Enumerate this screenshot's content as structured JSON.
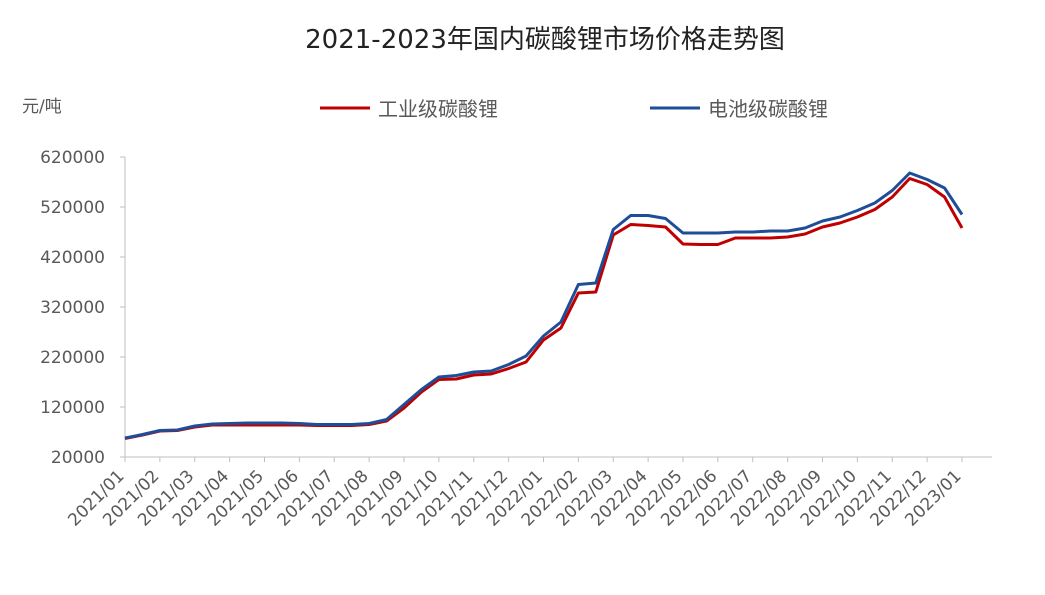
{
  "chart_data": {
    "type": "line",
    "title": "2021-2023年国内碳酸锂市场价格走势图",
    "y_label": "元/吨",
    "categories": [
      "2021/01",
      null,
      "2021/02",
      null,
      "2021/03",
      null,
      "2021/04",
      null,
      "2021/05",
      null,
      "2021/06",
      null,
      "2021/07",
      null,
      "2021/08",
      null,
      "2021/09",
      null,
      "2021/10",
      null,
      "2021/11",
      null,
      "2021/12",
      null,
      "2022/01",
      null,
      "2022/02",
      null,
      "2022/03",
      null,
      "2022/04",
      null,
      "2022/05",
      null,
      "2022/06",
      null,
      "2022/07",
      null,
      "2022/08",
      null,
      "2022/09",
      null,
      "2022/10",
      null,
      "2022/11",
      null,
      "2022/12",
      null,
      "2023/01"
    ],
    "series": [
      {
        "name": "工业级碳酸锂",
        "color": "#c00000",
        "values": [
          57000,
          64000,
          72000,
          73000,
          80000,
          84000,
          84000,
          84000,
          84000,
          84000,
          84000,
          83000,
          83000,
          83000,
          85000,
          92000,
          118000,
          150000,
          175000,
          176000,
          184000,
          186000,
          197000,
          210000,
          254000,
          278000,
          348000,
          350000,
          464000,
          485000,
          483000,
          480000,
          446000,
          445000,
          445000,
          458000,
          458000,
          458000,
          460000,
          466000,
          480000,
          488000,
          500000,
          515000,
          540000,
          577000,
          565000,
          540000,
          478000
        ]
      },
      {
        "name": "电池级碳酸锂",
        "color": "#1f4e99",
        "values": [
          58000,
          65000,
          73000,
          74000,
          82000,
          86000,
          87000,
          88000,
          88000,
          88000,
          87000,
          85000,
          85000,
          85000,
          87000,
          95000,
          125000,
          155000,
          180000,
          183000,
          190000,
          192000,
          205000,
          222000,
          262000,
          290000,
          365000,
          368000,
          475000,
          503000,
          503000,
          497000,
          468000,
          468000,
          468000,
          470000,
          470000,
          472000,
          472000,
          478000,
          492000,
          500000,
          513000,
          528000,
          553000,
          588000,
          575000,
          558000,
          505000
        ]
      }
    ],
    "ylim": [
      20000,
      620000
    ],
    "yticks": [
      20000,
      120000,
      220000,
      320000,
      420000,
      520000,
      620000
    ]
  }
}
